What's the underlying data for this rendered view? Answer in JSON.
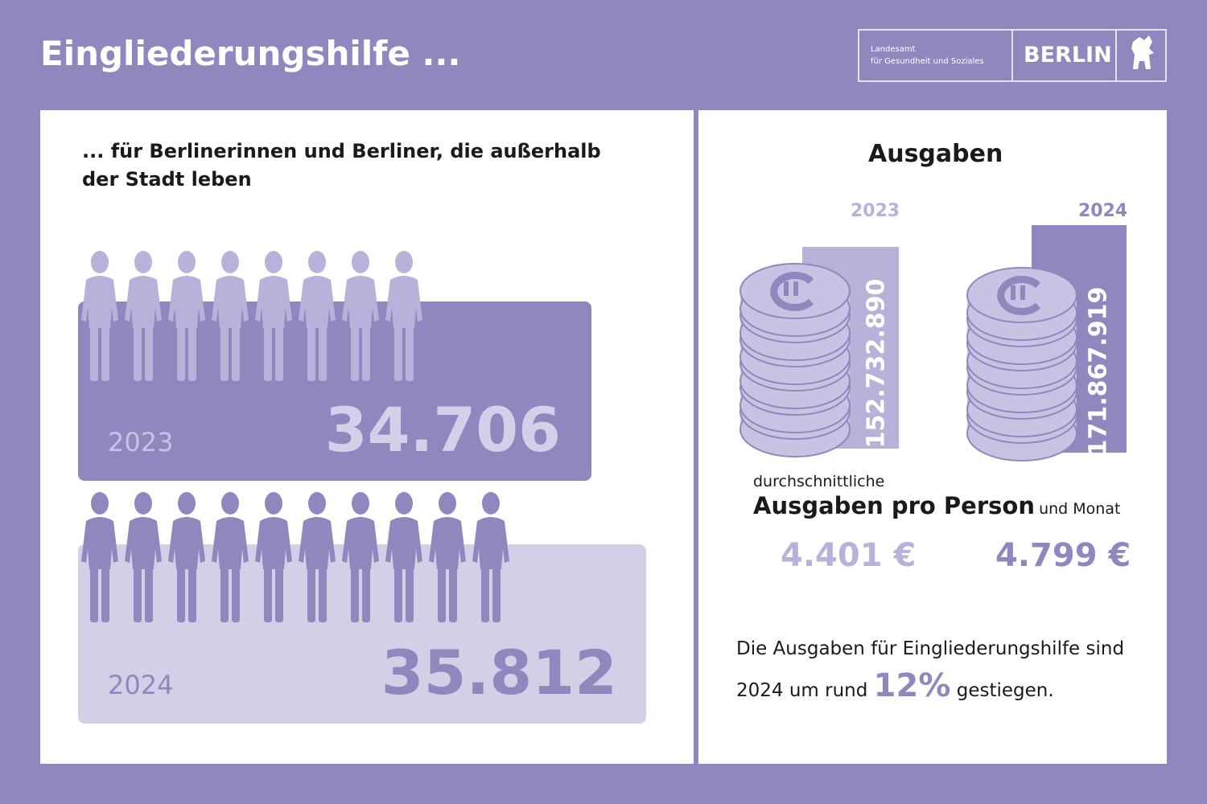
{
  "header": {
    "title": "Eingliederungshilfe ...",
    "logo": {
      "org_line1": "Landesamt",
      "org_line2": "für Gesundheit und Soziales",
      "city": "BERLIN"
    }
  },
  "left": {
    "subtitle_line1": "... für Berlinerinnen und Berliner, die außerhalb",
    "subtitle_line2": "der Stadt leben",
    "rows": [
      {
        "year": "2023",
        "count": "34.706"
      },
      {
        "year": "2024",
        "count": "35.812"
      }
    ]
  },
  "right": {
    "title": "Ausgaben",
    "stacks": [
      {
        "year": "2023",
        "amount": "152.732.890"
      },
      {
        "year": "2024",
        "amount": "171.867.919"
      }
    ],
    "avg": {
      "line1": "durchschnittliche",
      "bold": "Ausgaben pro Person",
      "rest": "und Monat"
    },
    "per_person": [
      "4.401 €",
      "4.799 €"
    ],
    "note": {
      "part1": "Die Ausgaben für Eingliederungshilfe sind",
      "part2": "2024 um rund",
      "highlight": "12%",
      "part3": "gestiegen."
    }
  }
}
